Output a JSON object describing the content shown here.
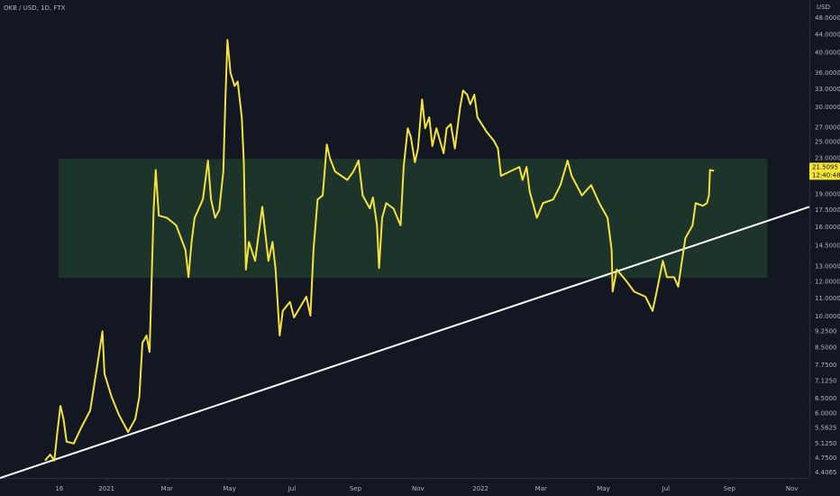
{
  "chart_data": {
    "type": "line",
    "title": "OKB / USD, 1D, FTX",
    "y_unit": "USD",
    "log_scale": true,
    "x": [
      -60,
      -55,
      -51,
      -48,
      -45,
      -42,
      -39,
      -32,
      -25,
      -16,
      -9,
      -4,
      -2,
      5,
      12,
      21,
      28,
      32,
      35,
      39,
      42,
      46,
      48,
      51,
      59,
      68,
      77,
      80,
      83,
      86,
      94,
      99,
      102,
      106,
      110,
      114,
      116,
      118,
      121,
      125,
      128,
      132,
      134,
      136,
      139,
      145,
      152,
      158,
      162,
      165,
      169,
      172,
      179,
      183,
      195,
      199,
      202,
      206,
      211,
      215,
      218,
      223,
      235,
      241,
      246,
      250,
      257,
      260,
      264,
      266,
      269,
      273,
      280,
      287,
      290,
      294,
      297,
      301,
      304,
      308,
      311,
      315,
      318,
      322,
      329,
      332,
      336,
      340,
      345,
      348,
      352,
      355,
      359,
      362,
      371,
      378,
      382,
      385,
      394,
      403,
      406,
      410,
      413,
      420,
      426,
      436,
      443,
      450,
      454,
      464,
      473,
      481,
      489,
      493,
      494,
      498,
      508,
      515,
      526,
      533,
      537,
      543,
      547,
      554,
      558,
      561,
      565,
      572,
      575,
      582,
      586,
      588,
      589,
      593
    ],
    "series": [
      {
        "name": "OKB / USD",
        "color": "#f5e23a",
        "values": [
          4.69,
          4.84,
          4.69,
          5.45,
          6.25,
          5.83,
          5.18,
          5.13,
          5.56,
          6.1,
          7.75,
          9.25,
          7.4,
          6.55,
          5.97,
          5.45,
          5.83,
          6.55,
          8.7,
          9.05,
          8.3,
          17.65,
          21.6,
          17.0,
          16.8,
          16.15,
          14.2,
          12.3,
          14.8,
          16.8,
          18.5,
          22.7,
          18.5,
          16.8,
          17.5,
          21.45,
          31.3,
          42.8,
          36,
          33.6,
          34.4,
          28.5,
          22.5,
          12.8,
          14.8,
          13.4,
          17.8,
          13.4,
          14.8,
          12.8,
          9.05,
          10.3,
          10.8,
          9.95,
          11.1,
          10.05,
          14.2,
          18.5,
          18.9,
          24.7,
          23.0,
          21.45,
          20.5,
          21.45,
          22.7,
          18.9,
          17.65,
          18.7,
          16.15,
          12.9,
          16.8,
          18.15,
          17.65,
          16.15,
          21.95,
          26.9,
          25.7,
          22.5,
          24.2,
          31.3,
          26.9,
          28.5,
          24.5,
          26.9,
          23.6,
          26.9,
          27.5,
          24.2,
          29.9,
          32.8,
          32.1,
          30.5,
          32.1,
          28.5,
          26.4,
          25.2,
          24.2,
          20.95,
          21.45,
          21.95,
          20.5,
          21.95,
          19.3,
          16.8,
          18.15,
          18.5,
          19.95,
          22.7,
          20.95,
          18.9,
          19.95,
          18.15,
          16.8,
          14.2,
          11.4,
          12.8,
          12.0,
          11.4,
          11.1,
          10.3,
          11.4,
          13.4,
          12.3,
          12.3,
          11.7,
          13.1,
          15.1,
          16.15,
          18.15,
          17.9,
          18.15,
          18.9,
          21.6,
          21.5095
        ]
      }
    ],
    "last_price": 21.5095,
    "countdown": "12:40:48",
    "zone": {
      "x": [
        -47,
        645
      ],
      "y": [
        12.25,
        22.9
      ],
      "color": "#1f3a2b"
    },
    "trendline": {
      "x": [
        -104,
        686
      ],
      "y": [
        4.28,
        17.8
      ],
      "color": "#ffffff"
    },
    "xlim": [
      -104,
      686
    ],
    "xticks": [
      {
        "value": -46,
        "label": "16"
      },
      {
        "value": 0,
        "label": "2021"
      },
      {
        "value": 59,
        "label": "Mar"
      },
      {
        "value": 120,
        "label": "May"
      },
      {
        "value": 181,
        "label": "Jul"
      },
      {
        "value": 243,
        "label": "Sep"
      },
      {
        "value": 304,
        "label": "Nov"
      },
      {
        "value": 365,
        "label": "2022"
      },
      {
        "value": 424,
        "label": "Mar"
      },
      {
        "value": 485,
        "label": "May"
      },
      {
        "value": 546,
        "label": "Jul"
      },
      {
        "value": 608,
        "label": "Sep"
      },
      {
        "value": 669,
        "label": "Nov"
      }
    ],
    "ylim": [
      4.28,
      52.8
    ],
    "yticks": [
      {
        "value": 48,
        "label": "48.0000"
      },
      {
        "value": 44,
        "label": "44.0000"
      },
      {
        "value": 40,
        "label": "40.0000"
      },
      {
        "value": 36,
        "label": "36.0000"
      },
      {
        "value": 33,
        "label": "33.0000"
      },
      {
        "value": 30,
        "label": "30.0000"
      },
      {
        "value": 27,
        "label": "27.0000"
      },
      {
        "value": 25,
        "label": "25.0000"
      },
      {
        "value": 23,
        "label": "23.0000"
      },
      {
        "value": 19,
        "label": "19.0000"
      },
      {
        "value": 17.5,
        "label": "17.5000"
      },
      {
        "value": 16,
        "label": "16.0000"
      },
      {
        "value": 14.5,
        "label": "14.5000"
      },
      {
        "value": 13,
        "label": "13.0000"
      },
      {
        "value": 12,
        "label": "12.0000"
      },
      {
        "value": 11,
        "label": "11.0000"
      },
      {
        "value": 10,
        "label": "10.0000"
      },
      {
        "value": 9.25,
        "label": "9.2500"
      },
      {
        "value": 8.5,
        "label": "8.5000"
      },
      {
        "value": 7.75,
        "label": "7.7500"
      },
      {
        "value": 7.125,
        "label": "7.1250"
      },
      {
        "value": 6.5,
        "label": "6.5000"
      },
      {
        "value": 6,
        "label": "6.0000"
      },
      {
        "value": 5.5625,
        "label": "5.5625"
      },
      {
        "value": 5.125,
        "label": "5.1250"
      },
      {
        "value": 4.75,
        "label": "4.7500"
      },
      {
        "value": 4.4065,
        "label": "4.4065"
      }
    ]
  }
}
